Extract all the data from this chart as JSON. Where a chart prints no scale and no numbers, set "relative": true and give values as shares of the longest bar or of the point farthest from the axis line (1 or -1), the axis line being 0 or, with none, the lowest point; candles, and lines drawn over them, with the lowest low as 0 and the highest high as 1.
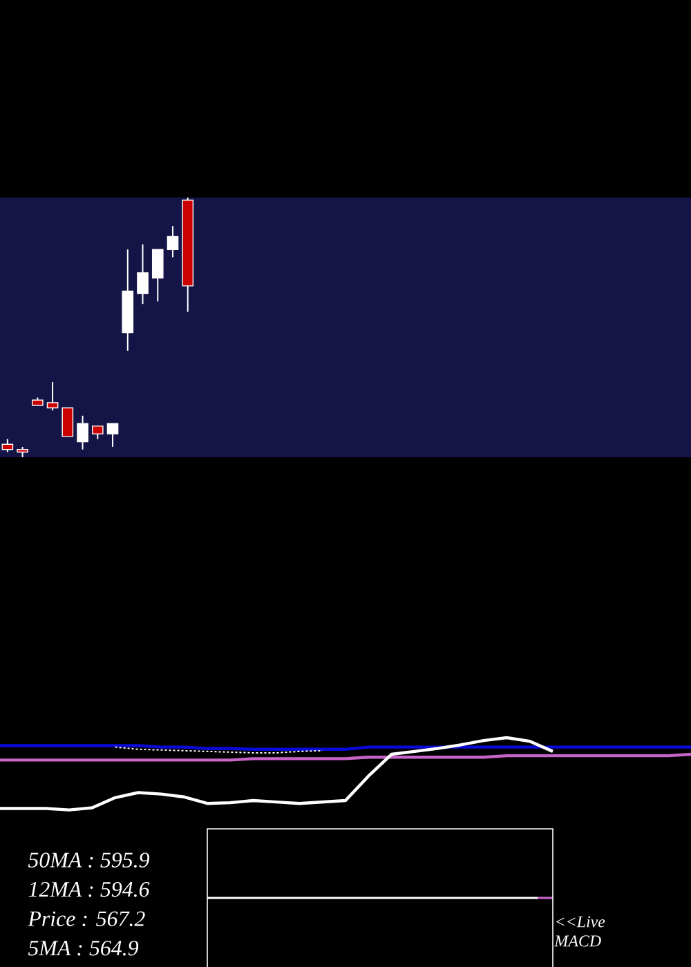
{
  "chart_data": [
    {
      "type": "candlestick",
      "relative": true,
      "categories": [
        null,
        null,
        null,
        null,
        null,
        null,
        null,
        null,
        null,
        null,
        null,
        null,
        null,
        null,
        null,
        null,
        null,
        null,
        null,
        null,
        null,
        null,
        null,
        null,
        null,
        null,
        null,
        null,
        null,
        null,
        null,
        null,
        null,
        null,
        null,
        null,
        null,
        null,
        null,
        null,
        null,
        null,
        null,
        null,
        null,
        null
      ],
      "ohlc": [
        [
          0.05,
          0.07,
          0.02,
          0.03
        ],
        [
          0.03,
          0.04,
          0,
          0.02
        ],
        [
          0.22,
          0.23,
          0.2,
          0.2
        ],
        [
          0.21,
          0.29,
          0.18,
          0.19
        ],
        [
          0.19,
          0.19,
          0.08,
          0.08
        ],
        [
          0.06,
          0.16,
          0.03,
          0.13
        ],
        [
          0.12,
          0.12,
          0.07,
          0.09
        ],
        [
          0.09,
          0.13,
          0.04,
          0.13
        ],
        [
          0.48,
          0.8,
          0.41,
          0.64
        ],
        [
          0.63,
          0.82,
          0.59,
          0.71
        ],
        [
          0.69,
          0.8,
          0.6,
          0.8
        ],
        [
          0.8,
          0.89,
          0.77,
          0.85
        ],
        [
          0.99,
          1,
          0.56,
          0.66
        ],
        null,
        null,
        null,
        null,
        null,
        null,
        null,
        null,
        null,
        null,
        null,
        null,
        null,
        null,
        null,
        null,
        null,
        null,
        null,
        null,
        null,
        null,
        null,
        null,
        null,
        null,
        null,
        null,
        null,
        null,
        null,
        null,
        null
      ],
      "colors": [
        "#cc0000",
        "#cc0000",
        "#cc0000",
        "#cc0000",
        "#cc0000",
        "#ffffff",
        "#cc0000",
        "#ffffff",
        "#ffffff",
        "#ffffff",
        "#ffffff",
        "#ffffff",
        "#cc0000",
        null,
        null,
        null,
        null,
        null,
        null,
        null,
        null,
        null,
        null,
        null,
        null,
        null,
        null,
        null,
        null,
        null,
        null,
        null,
        null,
        null,
        null,
        null,
        null,
        null,
        null,
        null,
        null,
        null,
        null,
        null,
        null,
        null
      ]
    },
    {
      "type": "line",
      "relative": true,
      "categories": [
        null,
        null,
        null,
        null,
        null,
        null,
        null,
        null,
        null,
        null,
        null,
        null,
        null,
        null,
        null,
        null,
        null,
        null,
        null,
        null,
        null,
        null,
        null,
        null,
        null,
        null,
        null,
        null,
        null,
        null,
        null
      ],
      "series": [
        {
          "color": "#0a0ad8",
          "values": [
            0.89,
            0.89,
            0.89,
            0.89,
            0.89,
            0.89,
            0.89,
            0.87,
            0.87,
            0.85,
            0.85,
            0.84,
            0.84,
            0.84,
            0.84,
            0.84,
            0.87,
            0.87,
            0.87,
            0.87,
            0.87,
            0.87,
            0.87,
            0.87,
            0.87,
            0.87,
            0.87,
            0.87,
            0.87,
            0.87,
            0.87
          ]
        },
        {
          "color": "#c864c8",
          "values": [
            0.69,
            0.69,
            0.69,
            0.69,
            0.69,
            0.69,
            0.69,
            0.69,
            0.69,
            0.69,
            0.69,
            0.71,
            0.71,
            0.71,
            0.71,
            0.71,
            0.73,
            0.73,
            0.73,
            0.73,
            0.73,
            0.73,
            0.75,
            0.75,
            0.75,
            0.75,
            0.75,
            0.75,
            0.75,
            0.75,
            0.77
          ]
        },
        {
          "color": "#ffffff",
          "line_style": "dotted",
          "values": [
            null,
            null,
            null,
            null,
            null,
            0.87,
            0.84,
            0.83,
            0.82,
            0.81,
            0.8,
            0.79,
            0.79,
            0.81,
            0.82,
            null,
            null,
            null,
            null,
            null,
            null,
            null,
            null,
            null,
            null,
            null,
            null,
            null,
            null,
            null,
            null
          ]
        },
        {
          "color": "#ffffff",
          "values": [
            0.02,
            0.02,
            0.02,
            0,
            0.03,
            0.17,
            0.24,
            0.22,
            0.18,
            0.09,
            0.1,
            0.13,
            0.11,
            0.09,
            0.11,
            0.13,
            0.47,
            0.77,
            0.81,
            0.85,
            0.9,
            0.96,
            1,
            0.95,
            0.81,
            null,
            null,
            null,
            null,
            null,
            null
          ]
        }
      ]
    },
    {
      "type": "other",
      "annotations": [
        "50MA : 595.9",
        "12MA : 594.6",
        "Price : 567.2",
        "5MA : 564.9"
      ]
    },
    {
      "type": "other",
      "annotations": [
        "<<Live MACD"
      ]
    }
  ]
}
